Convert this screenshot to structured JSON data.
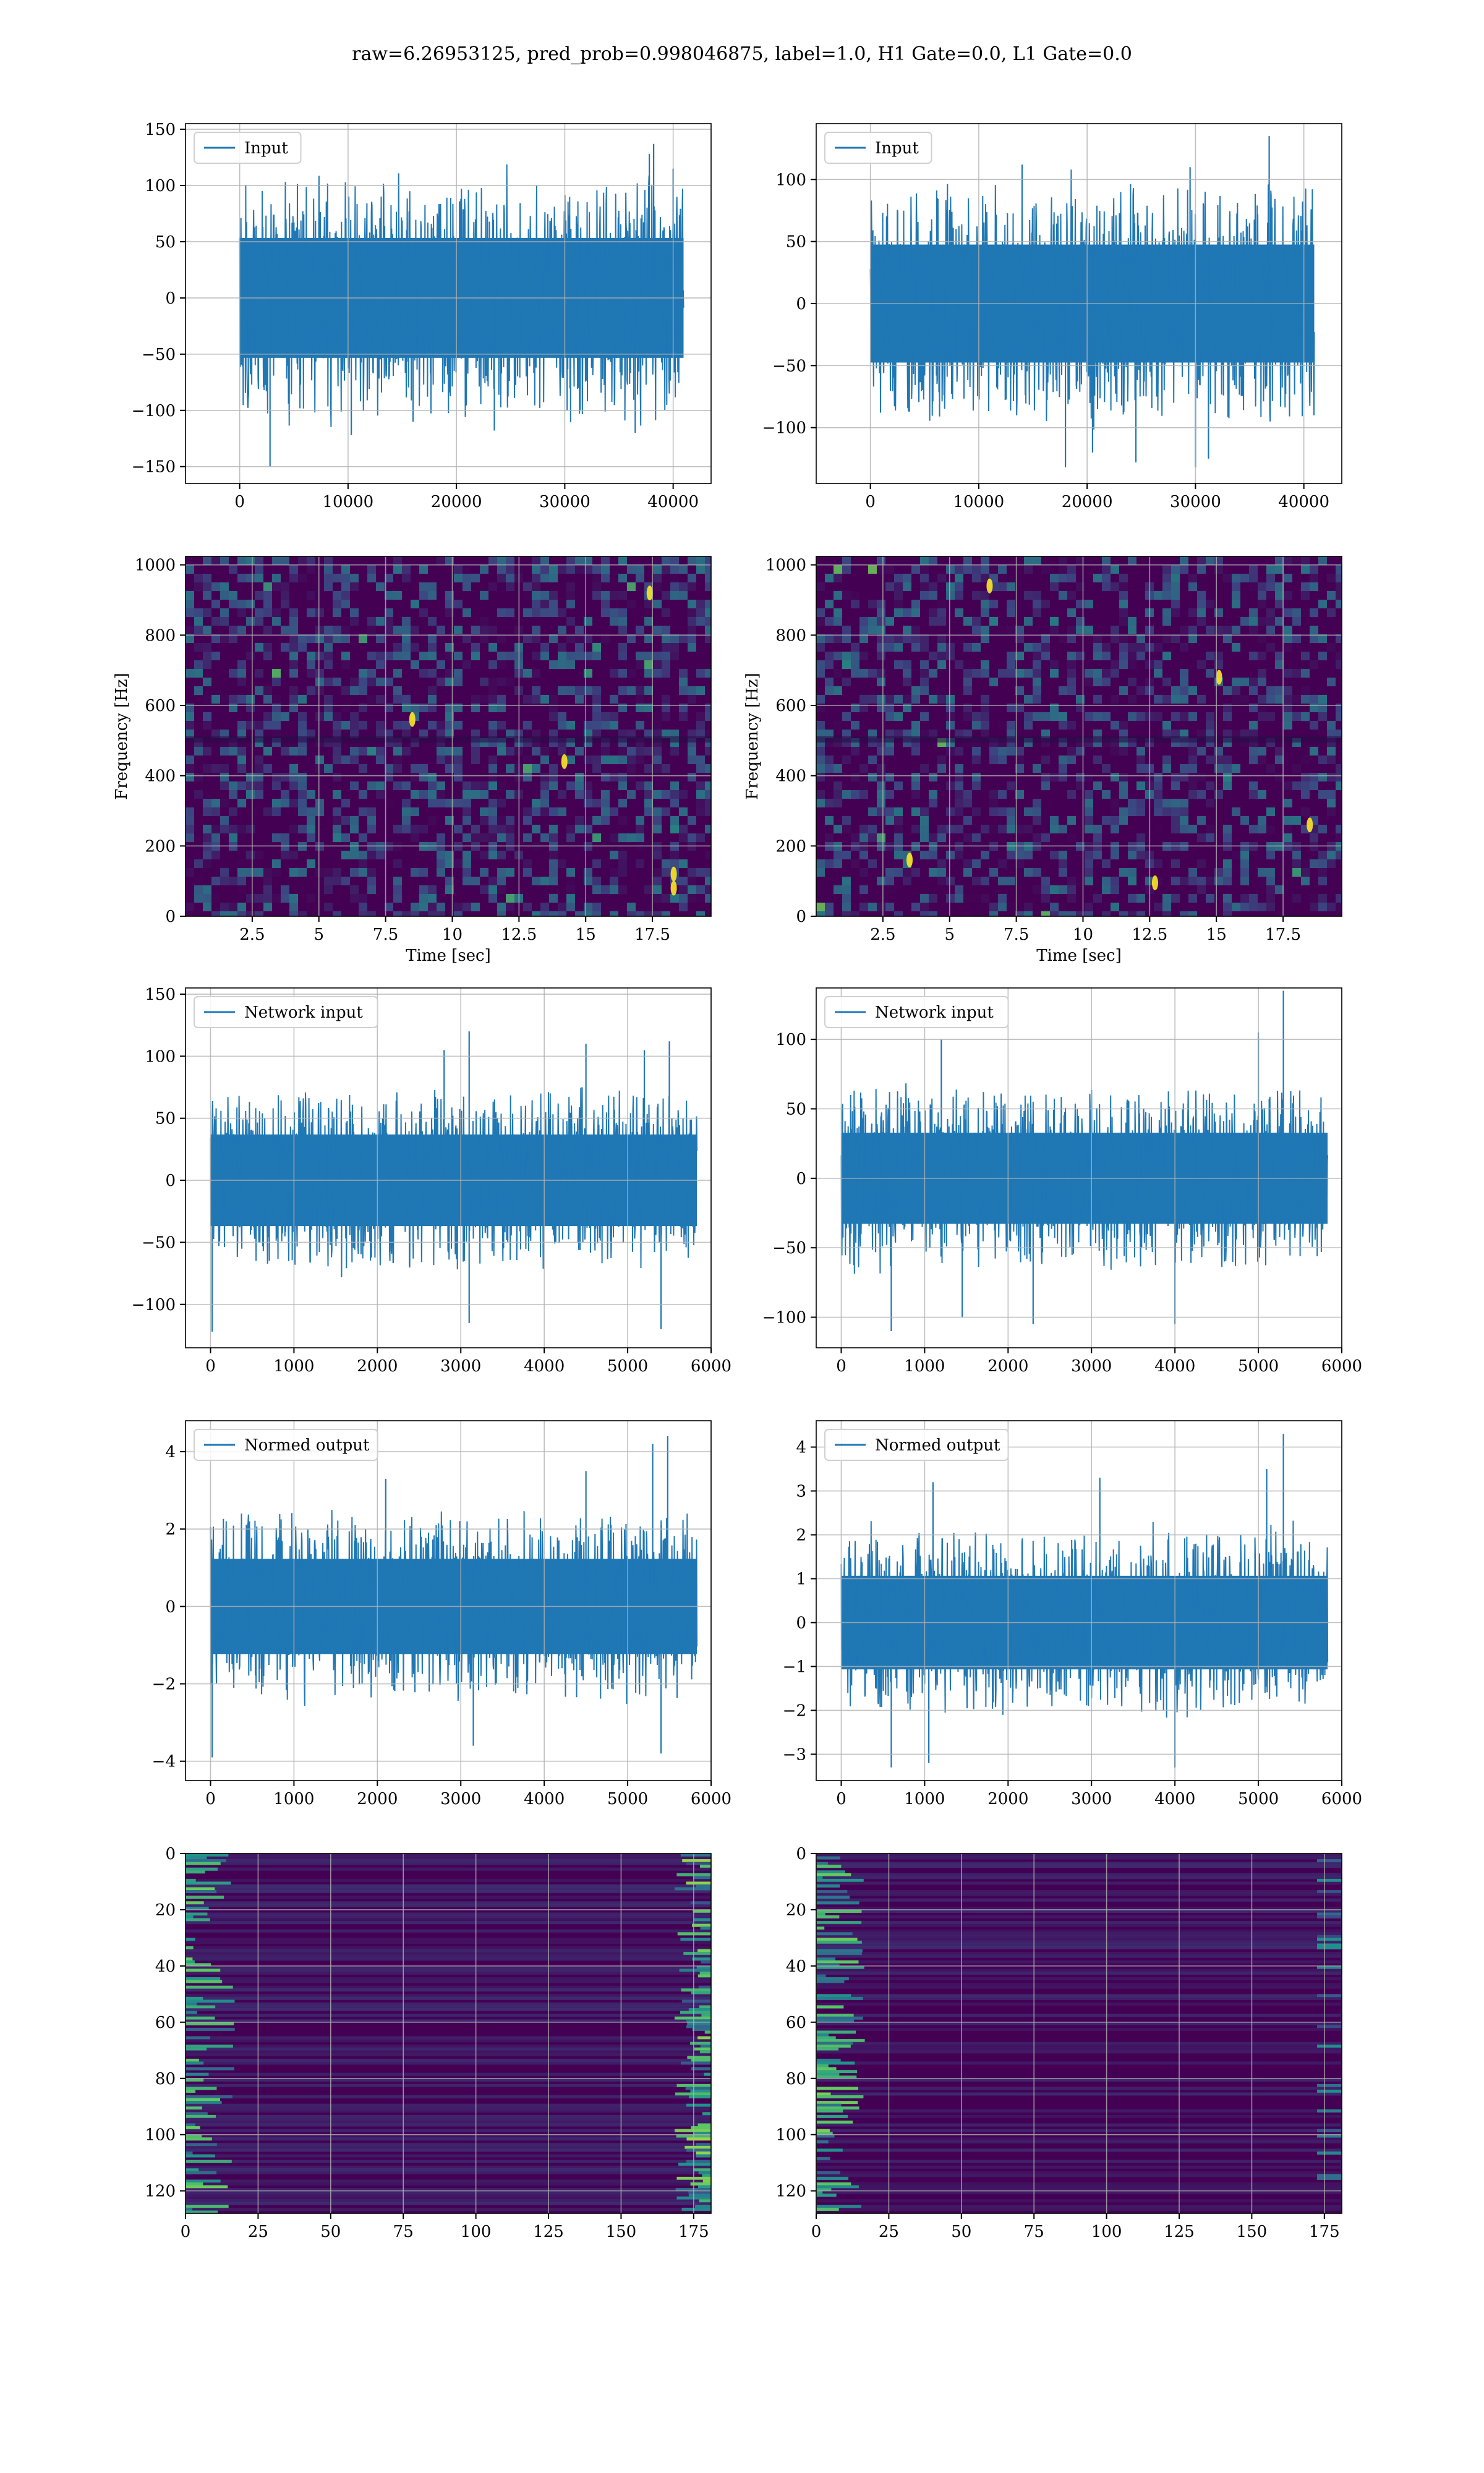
{
  "suptitle": "raw=6.26953125, pred_prob=0.998046875, label=1.0, H1 Gate=0.0, L1 Gate=0.0",
  "colors": {
    "line": "#1f77b4",
    "grid": "#b0b0b0",
    "viridis_low": "#440154",
    "viridis_mid": "#3b528b",
    "viridis_teal": "#21918c",
    "viridis_green": "#5ec962",
    "viridis_high": "#fde725"
  },
  "chart_data": [
    {
      "id": "h1-input",
      "type": "line",
      "legend": "Input",
      "legend_loc": "upper-left",
      "grid": true,
      "xlim": [
        -5000,
        43500
      ],
      "ylim": [
        -165,
        155
      ],
      "xticks": [
        0,
        10000,
        20000,
        30000,
        40000
      ],
      "yticks": [
        -150,
        -100,
        -50,
        0,
        50,
        100,
        150
      ],
      "n_samples": 40960,
      "band": [
        -65,
        65
      ],
      "extremes": [
        [
          2800,
          -150
        ],
        [
          10300,
          -122
        ],
        [
          16000,
          -110
        ],
        [
          23500,
          -118
        ],
        [
          36500,
          -120
        ],
        [
          37800,
          128
        ],
        [
          38200,
          137
        ],
        [
          40000,
          115
        ]
      ]
    },
    {
      "id": "l1-input",
      "type": "line",
      "legend": "Input",
      "legend_loc": "upper-left",
      "grid": true,
      "xlim": [
        -5000,
        43500
      ],
      "ylim": [
        -145,
        145
      ],
      "xticks": [
        0,
        10000,
        20000,
        30000,
        40000
      ],
      "yticks": [
        -100,
        -50,
        0,
        50,
        100
      ],
      "n_samples": 40960,
      "band": [
        -58,
        58
      ],
      "extremes": [
        [
          18000,
          -132
        ],
        [
          20500,
          -120
        ],
        [
          24500,
          -128
        ],
        [
          30000,
          -132
        ],
        [
          31200,
          -125
        ],
        [
          36800,
          135
        ],
        [
          29500,
          110
        ],
        [
          14000,
          112
        ]
      ]
    },
    {
      "id": "h1-spectrogram",
      "type": "heatmap",
      "xlabel": "Time [sec]",
      "ylabel": "Frequency [Hz]",
      "grid": true,
      "xlim": [
        0,
        19.7
      ],
      "ylim": [
        0,
        1024
      ],
      "xticks": [
        2.5,
        5,
        7.5,
        10,
        12.5,
        15,
        17.5
      ],
      "yticks": [
        0,
        200,
        400,
        600,
        800,
        1000
      ],
      "hot_spots": [
        [
          18.3,
          80
        ],
        [
          18.3,
          120
        ],
        [
          17.4,
          920
        ],
        [
          14.2,
          440
        ],
        [
          8.5,
          560
        ]
      ]
    },
    {
      "id": "l1-spectrogram",
      "type": "heatmap",
      "xlabel": "Time [sec]",
      "ylabel": "Frequency [Hz]",
      "grid": true,
      "xlim": [
        0,
        19.7
      ],
      "ylim": [
        0,
        1024
      ],
      "xticks": [
        2.5,
        5,
        7.5,
        10,
        12.5,
        15,
        17.5
      ],
      "yticks": [
        0,
        200,
        400,
        600,
        800,
        1000
      ],
      "hot_spots": [
        [
          12.7,
          95
        ],
        [
          18.5,
          260
        ],
        [
          6.5,
          940
        ],
        [
          3.5,
          160
        ],
        [
          15.1,
          680
        ]
      ]
    },
    {
      "id": "h1-network-input",
      "type": "line",
      "legend": "Network input",
      "legend_loc": "upper-left",
      "grid": true,
      "xlim": [
        -300,
        6000
      ],
      "ylim": [
        -135,
        155
      ],
      "xticks": [
        0,
        1000,
        2000,
        3000,
        4000,
        5000,
        6000
      ],
      "yticks": [
        -100,
        -50,
        0,
        50,
        100,
        150
      ],
      "n_samples": 5830,
      "band": [
        -45,
        45
      ],
      "extremes": [
        [
          20,
          -122
        ],
        [
          3100,
          -115
        ],
        [
          5400,
          -120
        ],
        [
          5500,
          112
        ],
        [
          5200,
          105
        ],
        [
          4500,
          110
        ],
        [
          3100,
          120
        ],
        [
          2800,
          105
        ]
      ]
    },
    {
      "id": "l1-network-input",
      "type": "line",
      "legend": "Network input",
      "legend_loc": "upper-left",
      "grid": true,
      "xlim": [
        -300,
        6000
      ],
      "ylim": [
        -122,
        137
      ],
      "xticks": [
        0,
        1000,
        2000,
        3000,
        4000,
        5000,
        6000
      ],
      "yticks": [
        -100,
        -50,
        0,
        50,
        100
      ],
      "n_samples": 5830,
      "band": [
        -40,
        40
      ],
      "extremes": [
        [
          5300,
          135
        ],
        [
          5000,
          105
        ],
        [
          1200,
          100
        ],
        [
          2300,
          -105
        ],
        [
          4000,
          -105
        ],
        [
          600,
          -110
        ],
        [
          1450,
          -100
        ]
      ]
    },
    {
      "id": "h1-normed-output",
      "type": "line",
      "legend": "Normed output",
      "legend_loc": "upper-left",
      "grid": true,
      "xlim": [
        -300,
        6000
      ],
      "ylim": [
        -4.5,
        4.8
      ],
      "xticks": [
        0,
        1000,
        2000,
        3000,
        4000,
        5000,
        6000
      ],
      "yticks": [
        -4,
        -2,
        0,
        2,
        4
      ],
      "n_samples": 5830,
      "band": [
        -1.5,
        1.5
      ],
      "extremes": [
        [
          20,
          -3.9
        ],
        [
          5400,
          -3.8
        ],
        [
          5480,
          4.4
        ],
        [
          5300,
          4.2
        ],
        [
          3150,
          -3.6
        ],
        [
          2100,
          3.3
        ],
        [
          4500,
          3.5
        ]
      ]
    },
    {
      "id": "l1-normed-output",
      "type": "line",
      "legend": "Normed output",
      "legend_loc": "upper-left",
      "grid": true,
      "xlim": [
        -300,
        6000
      ],
      "ylim": [
        -3.6,
        4.6
      ],
      "xticks": [
        0,
        1000,
        2000,
        3000,
        4000,
        5000,
        6000
      ],
      "yticks": [
        -3,
        -2,
        -1,
        0,
        1,
        2,
        3,
        4
      ],
      "n_samples": 5830,
      "band": [
        -1.3,
        1.3
      ],
      "extremes": [
        [
          5300,
          4.3
        ],
        [
          3100,
          3.3
        ],
        [
          1100,
          3.2
        ],
        [
          4000,
          -3.3
        ],
        [
          1050,
          -3.2
        ],
        [
          600,
          -3.3
        ],
        [
          5100,
          3.5
        ]
      ]
    },
    {
      "id": "h1-feature-map",
      "type": "heatmap",
      "grid": true,
      "origin": "top",
      "xlim": [
        0,
        181
      ],
      "ylim": [
        128,
        0
      ],
      "xticks": [
        0,
        25,
        50,
        75,
        100,
        125,
        150,
        175
      ],
      "yticks": [
        0,
        20,
        40,
        60,
        80,
        100,
        120
      ],
      "bright_edges": "left-and-right"
    },
    {
      "id": "l1-feature-map",
      "type": "heatmap",
      "grid": true,
      "origin": "top",
      "xlim": [
        0,
        181
      ],
      "ylim": [
        128,
        0
      ],
      "xticks": [
        0,
        25,
        50,
        75,
        100,
        125,
        150,
        175
      ],
      "yticks": [
        0,
        20,
        40,
        60,
        80,
        100,
        120
      ],
      "bright_edges": "left"
    }
  ]
}
